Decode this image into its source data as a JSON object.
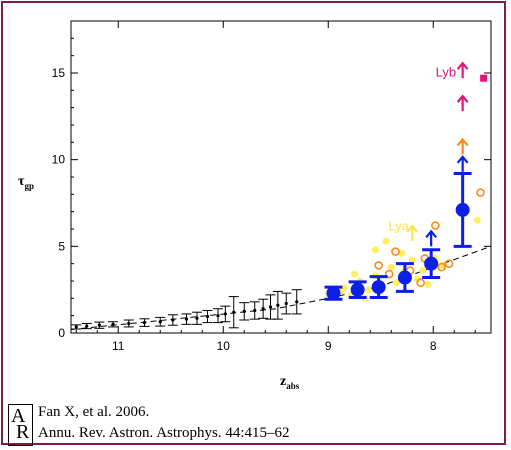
{
  "chart_data": {
    "type": "scatter",
    "xlabel": "z",
    "xlabel_sub": "abs",
    "ylabel": "τ",
    "ylabel_sub": "gp",
    "x_reversed": true,
    "xlim": [
      11.45,
      7.45
    ],
    "ylim": [
      0,
      18
    ],
    "xticks": [
      11,
      10,
      9,
      8
    ],
    "yticks": [
      0,
      5,
      10,
      15
    ],
    "grid": false,
    "annotations": [
      {
        "text": "Lyb",
        "x": 7.88,
        "y": 14.8,
        "color": "#e0157a"
      },
      {
        "text": "Lya",
        "x": 8.33,
        "y": 5.9,
        "color": "#ffe54a"
      }
    ],
    "series": [
      {
        "marker": "dash-errorbar",
        "color": "#000000",
        "points": [
          {
            "x": 11.4,
            "y": 0.35,
            "err": 0.12
          },
          {
            "x": 11.3,
            "y": 0.4,
            "err": 0.15
          },
          {
            "x": 11.18,
            "y": 0.45,
            "err": 0.18
          },
          {
            "x": 11.05,
            "y": 0.5,
            "err": 0.15
          },
          {
            "x": 10.9,
            "y": 0.55,
            "err": 0.2
          },
          {
            "x": 10.75,
            "y": 0.6,
            "err": 0.22
          },
          {
            "x": 10.6,
            "y": 0.65,
            "err": 0.25
          },
          {
            "x": 10.48,
            "y": 0.75,
            "err": 0.3
          },
          {
            "x": 10.35,
            "y": 0.8,
            "err": 0.3
          },
          {
            "x": 10.25,
            "y": 0.85,
            "err": 0.35
          },
          {
            "x": 10.15,
            "y": 0.95,
            "err": 0.35
          },
          {
            "x": 10.05,
            "y": 1.0,
            "err": 0.4
          },
          {
            "x": 9.98,
            "y": 1.1,
            "err": 0.45
          },
          {
            "x": 9.9,
            "y": 1.2,
            "err": 0.9
          },
          {
            "x": 9.8,
            "y": 1.25,
            "err": 0.5
          },
          {
            "x": 9.7,
            "y": 1.3,
            "err": 0.5
          },
          {
            "x": 9.62,
            "y": 1.4,
            "err": 0.55
          },
          {
            "x": 9.55,
            "y": 1.5,
            "err": 0.7
          },
          {
            "x": 9.48,
            "y": 1.6,
            "err": 0.8
          },
          {
            "x": 9.4,
            "y": 1.7,
            "err": 0.6
          },
          {
            "x": 9.3,
            "y": 1.8,
            "err": 0.7
          }
        ]
      },
      {
        "marker": "dot",
        "color": "#ffee60",
        "points": [
          {
            "x": 9.0,
            "y": 2.3
          },
          {
            "x": 8.93,
            "y": 2.1
          },
          {
            "x": 8.85,
            "y": 2.6
          },
          {
            "x": 8.78,
            "y": 2.2
          },
          {
            "x": 8.7,
            "y": 3.0
          },
          {
            "x": 8.62,
            "y": 2.5
          },
          {
            "x": 8.55,
            "y": 3.3
          },
          {
            "x": 8.48,
            "y": 2.7
          },
          {
            "x": 8.4,
            "y": 3.8
          },
          {
            "x": 8.35,
            "y": 2.9
          },
          {
            "x": 8.28,
            "y": 3.5
          },
          {
            "x": 8.2,
            "y": 4.2
          },
          {
            "x": 8.15,
            "y": 3.1
          },
          {
            "x": 8.1,
            "y": 3.6
          },
          {
            "x": 8.05,
            "y": 2.8
          },
          {
            "x": 7.98,
            "y": 4.3
          },
          {
            "x": 7.92,
            "y": 3.9
          },
          {
            "x": 7.58,
            "y": 6.5
          },
          {
            "x": 8.55,
            "y": 4.8
          },
          {
            "x": 8.45,
            "y": 5.3
          },
          {
            "x": 8.75,
            "y": 3.4
          },
          {
            "x": 8.3,
            "y": 4.6
          },
          {
            "x": 8.65,
            "y": 2.0
          },
          {
            "x": 8.88,
            "y": 2.4
          }
        ]
      },
      {
        "marker": "open-circle",
        "color": "#ff8a1a",
        "points": [
          {
            "x": 8.52,
            "y": 3.9
          },
          {
            "x": 8.42,
            "y": 3.4
          },
          {
            "x": 8.36,
            "y": 4.7
          },
          {
            "x": 8.22,
            "y": 3.6
          },
          {
            "x": 8.12,
            "y": 2.9
          },
          {
            "x": 8.08,
            "y": 4.3
          },
          {
            "x": 7.98,
            "y": 6.2
          },
          {
            "x": 7.92,
            "y": 3.8
          },
          {
            "x": 7.85,
            "y": 4.0
          },
          {
            "x": 7.55,
            "y": 8.1
          }
        ]
      },
      {
        "marker": "big-dot-errorbar",
        "color": "#0b1fe8",
        "points": [
          {
            "x": 8.95,
            "y": 2.3,
            "err": 0.35
          },
          {
            "x": 8.72,
            "y": 2.5,
            "err": 0.45
          },
          {
            "x": 8.52,
            "y": 2.65,
            "err": 0.6
          },
          {
            "x": 8.27,
            "y": 3.2,
            "err": 0.8
          },
          {
            "x": 8.02,
            "y": 4.0,
            "err": 0.8
          },
          {
            "x": 7.72,
            "y": 7.1,
            "err": 2.1
          }
        ]
      }
    ],
    "arrows": [
      {
        "x": 8.2,
        "y": 5.3,
        "color": "#ffe54a"
      },
      {
        "x": 8.02,
        "y": 5.0,
        "color": "#0b1fe8"
      },
      {
        "x": 7.72,
        "y": 9.3,
        "color": "#0b1fe8"
      },
      {
        "x": 7.72,
        "y": 10.3,
        "color": "#ff8a1a"
      },
      {
        "x": 7.72,
        "y": 12.8,
        "color": "#e0157a"
      },
      {
        "x": 7.72,
        "y": 14.7,
        "color": "#e0157a"
      }
    ],
    "lyb_square": {
      "x": 7.52,
      "y": 14.7,
      "color": "#e0157a"
    },
    "fit_line": {
      "style": "dashed",
      "color": "#000000",
      "points": [
        {
          "x": 11.45,
          "y": 0.2
        },
        {
          "x": 9.5,
          "y": 1.4
        },
        {
          "x": 9.0,
          "y": 2.0
        },
        {
          "x": 8.5,
          "y": 2.7
        },
        {
          "x": 8.0,
          "y": 3.8
        },
        {
          "x": 7.45,
          "y": 5.0
        }
      ]
    }
  },
  "citation": {
    "logo_a": "A",
    "logo_r": "R",
    "line1": "Fan X, et al. 2006.",
    "line2": "Annu. Rev. Astron. Astrophys. 44:415–62"
  }
}
